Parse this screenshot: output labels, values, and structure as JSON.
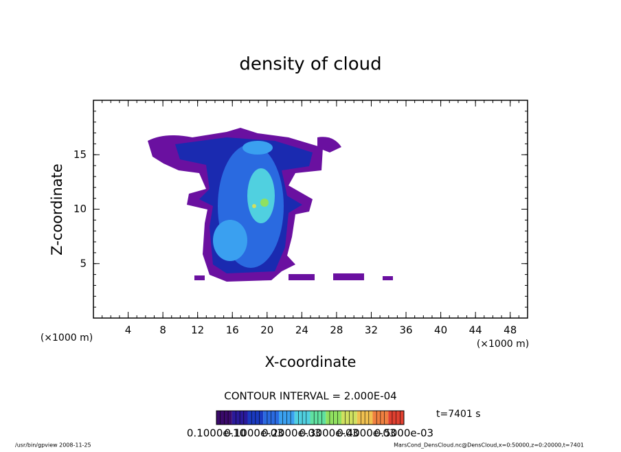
{
  "chart_data": {
    "type": "contour",
    "title": "density of cloud",
    "xlabel": "X-coordinate",
    "ylabel": "Z-coordinate",
    "x_unit": "(×1000 m)",
    "y_unit": "(×1000 m)",
    "xlim": [
      0,
      50
    ],
    "ylim": [
      0,
      20
    ],
    "xticks": [
      4,
      8,
      12,
      16,
      20,
      24,
      28,
      32,
      36,
      40,
      44,
      48
    ],
    "yticks": [
      5,
      10,
      15
    ],
    "contour_interval": "CONTOUR INTERVAL = 2.000E-04",
    "time_label": "t=7401 s",
    "colorbar": {
      "labels": [
        "0.1000e-10",
        "0.1000e-03",
        "0.2000e-03",
        "0.3000e-03",
        "0.4000e-03",
        "0.5000e-03"
      ],
      "colors": [
        "#3a0a6a",
        "#2a1a9a",
        "#1a3ac0",
        "#2a6ae0",
        "#3aa0f0",
        "#50d0e0",
        "#60e0a0",
        "#90e060",
        "#d0e060",
        "#f0c050",
        "#f08040",
        "#e04030"
      ]
    },
    "footer_left": "/usr/bin/gpview   2008-11-25",
    "footer_right": "MarsCond_DensCloud.nc@DensCloud,x=0:50000,z=0:20000,t=7401"
  }
}
